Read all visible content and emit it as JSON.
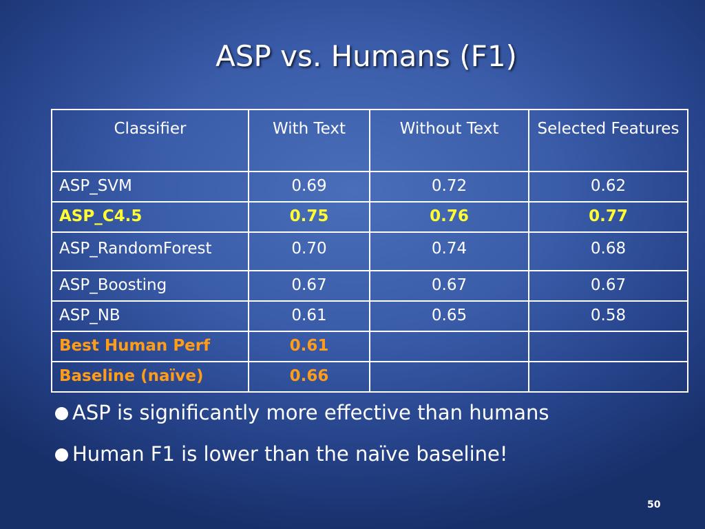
{
  "title": "ASP vs. Humans (F1)",
  "table": {
    "headers": [
      "Classifier",
      "With Text",
      "Without Text",
      "Selected Features"
    ],
    "rows": [
      {
        "classifier": "ASP_SVM",
        "with_text": "0.69",
        "without_text": "0.72",
        "selected_features": "0.62"
      },
      {
        "classifier": "ASP_C4.5",
        "with_text": "0.75",
        "without_text": "0.76",
        "selected_features": "0.77"
      },
      {
        "classifier": "ASP_RandomForest",
        "with_text": "0.70",
        "without_text": "0.74",
        "selected_features": "0.68"
      },
      {
        "classifier": "ASP_Boosting",
        "with_text": "0.67",
        "without_text": "0.67",
        "selected_features": "0.67"
      },
      {
        "classifier": "ASP_NB",
        "with_text": "0.61",
        "without_text": "0.65",
        "selected_features": "0.58"
      },
      {
        "classifier": "Best Human Perf",
        "with_text": "0.61",
        "without_text": "",
        "selected_features": ""
      },
      {
        "classifier": "Baseline (naïve)",
        "with_text": "0.66",
        "without_text": "",
        "selected_features": ""
      }
    ]
  },
  "bullets": [
    "ASP is significantly more effective than humans",
    "Human F1 is lower than the naïve baseline!"
  ],
  "slide_number": "50",
  "colors": {
    "background": "#3a5ca9",
    "highlight_row": "#ffff33",
    "human_rows": "#ff9c19",
    "text": "#ffffff",
    "table_border": "#ffffff"
  },
  "icons": {
    "bullet": "filled-circle-bullet-icon"
  }
}
